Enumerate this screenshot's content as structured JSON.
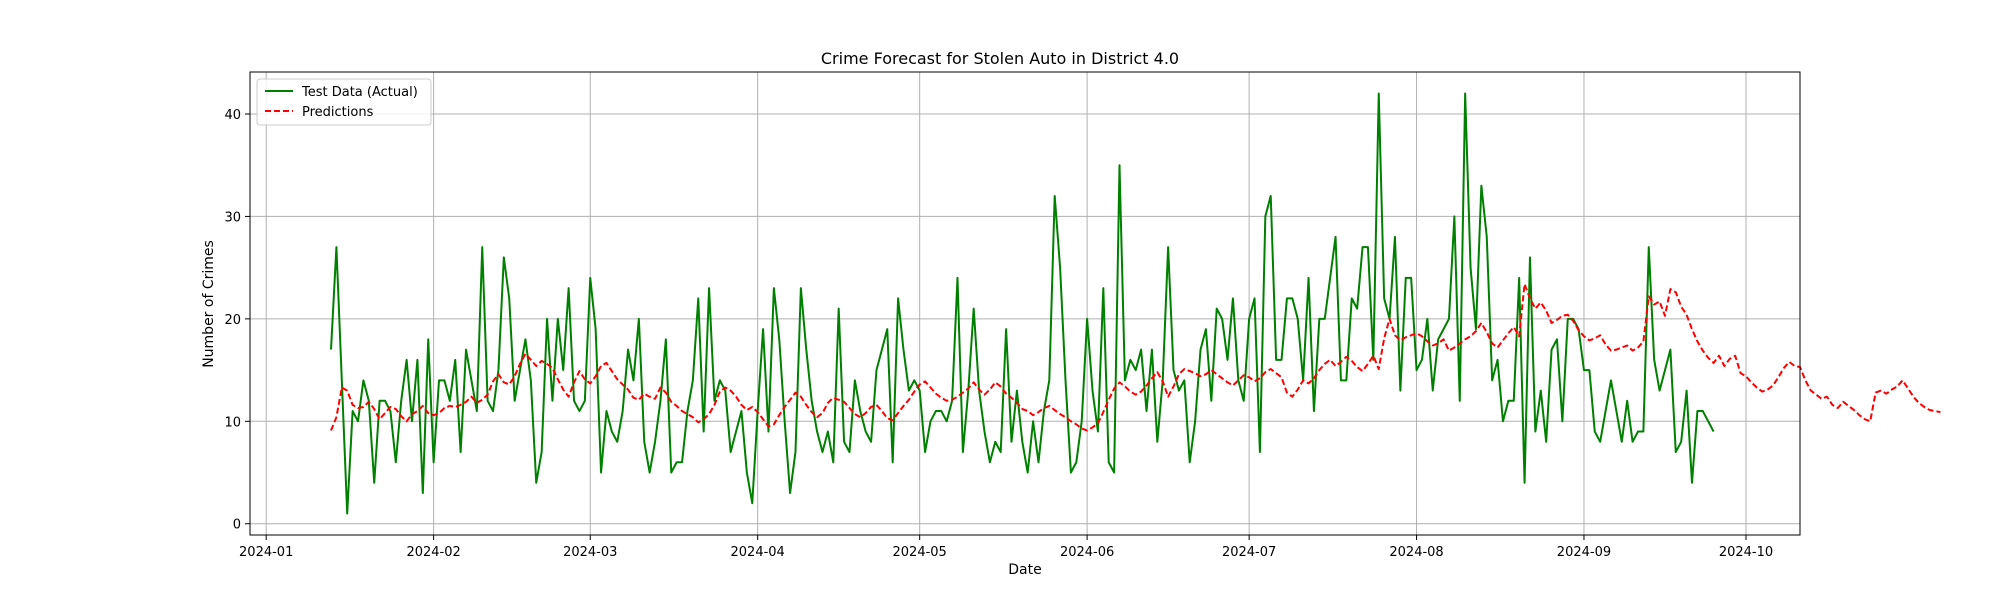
{
  "chart_data": {
    "type": "line",
    "title": "Crime Forecast for Stolen Auto in District 4.0",
    "xlabel": "Date",
    "ylabel": "Number of Crimes",
    "grid": true,
    "legend_position": "top-left",
    "x_start": "2024-01-13",
    "x_step_days": 1,
    "xlim": [
      "2023-12-29",
      "2024-10-11"
    ],
    "ylim": [
      -1.1,
      44.1
    ],
    "x_ticks": [
      {
        "date": "2024-01-01",
        "label": "2024-01"
      },
      {
        "date": "2024-02-01",
        "label": "2024-02"
      },
      {
        "date": "2024-03-01",
        "label": "2024-03"
      },
      {
        "date": "2024-04-01",
        "label": "2024-04"
      },
      {
        "date": "2024-05-01",
        "label": "2024-05"
      },
      {
        "date": "2024-06-01",
        "label": "2024-06"
      },
      {
        "date": "2024-07-01",
        "label": "2024-07"
      },
      {
        "date": "2024-08-01",
        "label": "2024-08"
      },
      {
        "date": "2024-09-01",
        "label": "2024-09"
      },
      {
        "date": "2024-10-01",
        "label": "2024-10"
      }
    ],
    "y_ticks": [
      0,
      10,
      20,
      30,
      40
    ],
    "series": [
      {
        "name": "Test Data (Actual)",
        "color": "#008000",
        "style": "solid",
        "values": [
          17,
          27,
          14,
          1,
          11,
          10,
          14,
          12,
          4,
          12,
          12,
          11,
          6,
          12,
          16,
          10,
          16,
          3,
          18,
          6,
          14,
          14,
          12,
          16,
          7,
          17,
          14,
          11,
          27,
          12,
          11,
          15,
          26,
          22,
          12,
          15,
          18,
          14,
          4,
          7,
          20,
          12,
          20,
          15,
          23,
          12,
          11,
          12,
          24,
          19,
          5,
          11,
          9,
          8,
          11,
          17,
          14,
          20,
          8,
          5,
          8,
          12,
          18,
          5,
          6,
          6,
          11,
          14,
          22,
          9,
          23,
          12,
          14,
          13,
          7,
          9,
          11,
          5,
          2,
          11,
          19,
          9,
          23,
          18,
          10,
          3,
          7,
          23,
          17,
          12,
          9,
          7,
          9,
          6,
          21,
          8,
          7,
          14,
          11,
          9,
          8,
          15,
          17,
          19,
          6,
          22,
          17,
          13,
          14,
          13,
          7,
          10,
          11,
          11,
          10,
          12,
          24,
          7,
          13,
          21,
          13,
          9,
          6,
          8,
          7,
          19,
          8,
          13,
          8,
          5,
          10,
          6,
          11,
          14,
          32,
          25,
          14,
          5,
          6,
          10,
          20,
          13,
          9,
          23,
          6,
          5,
          35,
          14,
          16,
          15,
          17,
          11,
          17,
          8,
          14,
          27,
          15,
          13,
          14,
          6,
          10,
          17,
          19,
          12,
          21,
          20,
          16,
          22,
          14,
          12,
          20,
          22,
          7,
          30,
          32,
          16,
          16,
          22,
          22,
          20,
          14,
          24,
          11,
          20,
          20,
          24,
          28,
          14,
          14,
          22,
          21,
          27,
          27,
          16,
          42,
          22,
          20,
          28,
          13,
          24,
          24,
          15,
          16,
          20,
          13,
          18,
          19,
          20,
          30,
          12,
          42,
          25,
          19,
          33,
          28,
          14,
          16,
          10,
          12,
          12,
          24,
          4,
          26,
          9,
          13,
          8,
          17,
          18,
          10,
          20,
          20,
          19,
          15,
          15,
          9,
          8,
          11,
          14,
          11,
          8,
          12,
          8,
          9,
          9,
          27,
          16,
          13,
          15,
          17,
          7,
          8,
          13,
          4,
          11,
          11,
          10,
          9
        ]
      },
      {
        "name": "Predictions",
        "color": "#ff0000",
        "style": "dashed",
        "values": [
          9.1,
          10.4,
          13.3,
          13.0,
          11.6,
          11.3,
          11.4,
          11.9,
          11.2,
          10.2,
          10.8,
          11.4,
          11.2,
          10.5,
          10.0,
          10.7,
          11.0,
          11.5,
          10.8,
          10.6,
          10.8,
          11.3,
          11.5,
          11.4,
          11.6,
          11.9,
          12.4,
          11.8,
          12.1,
          12.6,
          13.9,
          14.6,
          13.8,
          13.6,
          14.4,
          15.6,
          16.6,
          16.0,
          15.4,
          15.9,
          15.6,
          15.2,
          14.1,
          13.1,
          12.4,
          13.8,
          14.9,
          14.1,
          13.7,
          14.4,
          15.4,
          15.7,
          14.9,
          14.1,
          13.6,
          13.1,
          12.3,
          12.1,
          12.7,
          12.4,
          12.2,
          13.3,
          12.8,
          11.9,
          11.5,
          11.0,
          10.7,
          10.4,
          9.9,
          10.2,
          10.7,
          11.6,
          12.9,
          13.3,
          13.0,
          12.4,
          11.6,
          11.1,
          11.4,
          10.9,
          10.2,
          9.5,
          9.7,
          10.6,
          11.4,
          12.1,
          12.8,
          12.4,
          11.6,
          10.9,
          10.4,
          10.8,
          11.8,
          12.3,
          12.1,
          11.9,
          11.3,
          10.7,
          10.4,
          10.8,
          11.4,
          11.6,
          11.0,
          10.3,
          10.1,
          10.8,
          11.5,
          12.1,
          12.9,
          13.6,
          13.9,
          13.3,
          12.7,
          12.3,
          12.0,
          12.1,
          12.4,
          12.8,
          13.2,
          13.8,
          13.1,
          12.6,
          13.1,
          13.8,
          13.4,
          12.7,
          12.3,
          11.8,
          11.2,
          11.0,
          10.6,
          10.9,
          11.3,
          11.5,
          11.1,
          10.7,
          10.4,
          10.0,
          9.7,
          9.3,
          9.1,
          9.4,
          9.8,
          10.9,
          12.1,
          13.2,
          13.8,
          13.4,
          12.9,
          12.6,
          12.9,
          13.5,
          14.2,
          14.8,
          13.9,
          12.4,
          13.4,
          14.6,
          15.1,
          14.9,
          14.7,
          14.4,
          14.6,
          15.0,
          14.6,
          14.2,
          13.8,
          13.5,
          14.0,
          14.5,
          14.3,
          13.9,
          14.2,
          14.8,
          15.1,
          14.7,
          14.3,
          12.8,
          12.4,
          13.1,
          14.0,
          13.7,
          14.2,
          15.0,
          15.6,
          16.0,
          15.4,
          15.8,
          16.3,
          15.9,
          15.3,
          14.9,
          15.6,
          16.4,
          15.1,
          18.1,
          20.0,
          18.4,
          17.9,
          18.2,
          18.4,
          18.6,
          18.3,
          17.8,
          17.4,
          17.6,
          18.0,
          16.9,
          17.2,
          17.6,
          18.0,
          18.3,
          18.8,
          19.6,
          18.7,
          17.6,
          17.2,
          17.9,
          18.6,
          19.2,
          18.3,
          23.4,
          22.0,
          21.0,
          21.6,
          20.8,
          19.6,
          19.9,
          20.3,
          20.4,
          19.8,
          18.9,
          18.3,
          17.9,
          18.1,
          18.4,
          17.5,
          16.9,
          17.0,
          17.2,
          17.4,
          16.9,
          17.2,
          17.8,
          22.2,
          21.4,
          21.7,
          20.3,
          22.9,
          22.6,
          21.2,
          20.4,
          19.0,
          17.8,
          16.9,
          16.2,
          15.7,
          16.4,
          15.4,
          16.1,
          16.4,
          14.7,
          14.4,
          13.8,
          13.3,
          12.9,
          13.1,
          13.5,
          14.3,
          15.2,
          15.8,
          15.4,
          15.3,
          14.0,
          13.0,
          12.6,
          12.2,
          12.4,
          11.6,
          11.3,
          11.9,
          11.5,
          11.1,
          10.6,
          10.2,
          10.0,
          12.8,
          13.0,
          12.7,
          13.1,
          13.4,
          14.0,
          13.2,
          12.4,
          11.8,
          11.4,
          11.1,
          11.0,
          10.9
        ]
      }
    ]
  }
}
